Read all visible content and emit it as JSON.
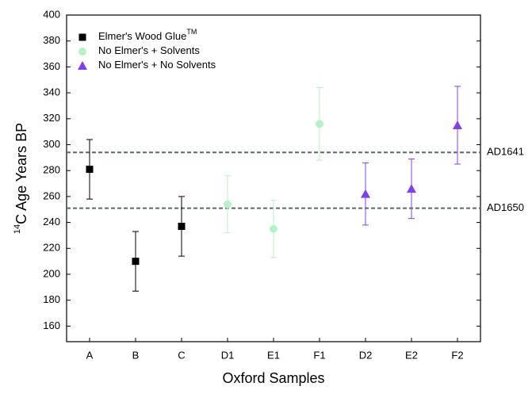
{
  "chart_data": {
    "type": "errorbar",
    "xlabel": "Oxford Samples",
    "ylabel_superscript": "14",
    "ylabel": "C Age Years BP",
    "categories": [
      "A",
      "B",
      "C",
      "D1",
      "E1",
      "F1",
      "D2",
      "E2",
      "F2"
    ],
    "series": [
      {
        "name": "Elmer's Wood Glue",
        "name_superscript": "TM",
        "color": "#000000",
        "marker": "square",
        "values": [
          281,
          210,
          237,
          null,
          null,
          null,
          null,
          null,
          null
        ],
        "errors": [
          23,
          23,
          23,
          null,
          null,
          null,
          null,
          null,
          null
        ]
      },
      {
        "name": "No Elmer's + Solvents",
        "color": "#b5f2c8",
        "marker": "circle",
        "values": [
          null,
          null,
          null,
          254,
          235,
          316,
          null,
          null,
          null
        ],
        "errors": [
          null,
          null,
          null,
          22,
          22,
          28,
          null,
          null,
          null
        ]
      },
      {
        "name": "No Elmer's + No Solvents",
        "color": "#8040f0",
        "marker": "triangle",
        "values": [
          null,
          null,
          null,
          null,
          null,
          null,
          262,
          266,
          315
        ],
        "errors": [
          null,
          null,
          null,
          null,
          null,
          null,
          24,
          23,
          30
        ]
      }
    ],
    "reference_lines": [
      {
        "value": 294,
        "label": "AD1641"
      },
      {
        "value": 251,
        "label": "AD1650"
      }
    ],
    "ylim": [
      148,
      400
    ],
    "yticks": [
      160,
      180,
      200,
      220,
      240,
      260,
      280,
      300,
      320,
      340,
      360,
      380,
      400
    ],
    "legend": "upper-left"
  }
}
